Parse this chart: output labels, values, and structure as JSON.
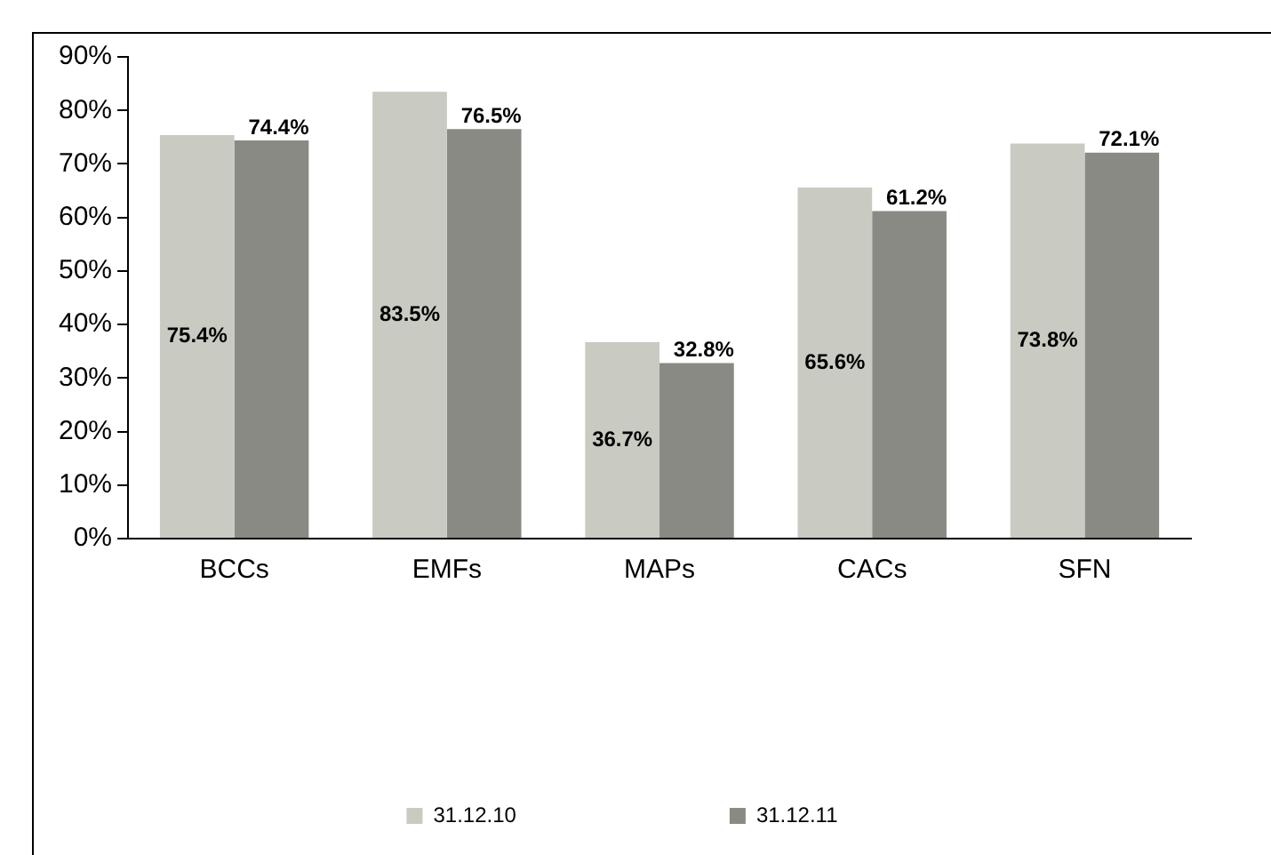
{
  "chart_data": {
    "type": "bar",
    "categories": [
      "BCCs",
      "EMFs",
      "MAPs",
      "CACs",
      "SFN"
    ],
    "series": [
      {
        "name": "31.12.10",
        "color": "#c9cac2",
        "values": [
          75.4,
          83.5,
          36.7,
          65.6,
          73.8
        ],
        "value_labels": [
          "75.4%",
          "83.5%",
          "36.7%",
          "65.6%",
          "73.8%"
        ]
      },
      {
        "name": "31.12.11",
        "color": "#8a8a84",
        "values": [
          74.4,
          76.5,
          32.8,
          61.2,
          72.1
        ],
        "value_labels": [
          "74.4%",
          "76.5%",
          "32.8%",
          "61.2%",
          "72.1%"
        ]
      }
    ],
    "ylim": [
      0,
      90
    ],
    "yticks": [
      {
        "value": 0,
        "label": "0%"
      },
      {
        "value": 10,
        "label": "10%"
      },
      {
        "value": 20,
        "label": "20%"
      },
      {
        "value": 30,
        "label": "30%"
      },
      {
        "value": 40,
        "label": "40%"
      },
      {
        "value": 50,
        "label": "50%"
      },
      {
        "value": 60,
        "label": "60%"
      },
      {
        "value": 70,
        "label": "70%"
      },
      {
        "value": 80,
        "label": "80%"
      },
      {
        "value": 90,
        "label": "90%"
      }
    ],
    "grid": false,
    "legend": "bottom"
  }
}
